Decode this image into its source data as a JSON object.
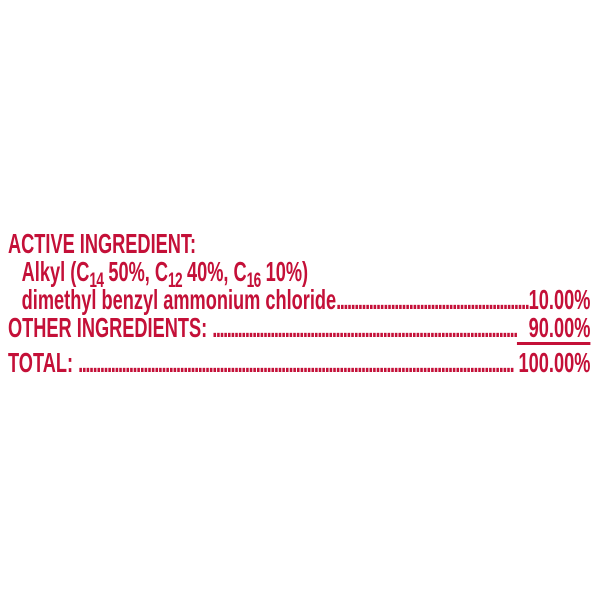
{
  "panel": {
    "text_color": "#c41038",
    "heading": "ACTIVE INGREDIENT:",
    "alkyl": {
      "p0": "Alkyl (C",
      "s0": "14",
      "p1": " 50%, C",
      "s1": "12",
      "p2": " 40%, C",
      "s2": "16",
      "p3": " 10%)"
    },
    "rows": {
      "chloride": {
        "label": "dimethyl benzyl ammonium chloride",
        "value": "10.00%"
      },
      "other": {
        "label": "OTHER INGREDIENTS: ",
        "value": "90.00%"
      },
      "total": {
        "label": "TOTAL: ",
        "value": "100.00%"
      }
    },
    "leader_dots": "........................................................................................................................"
  }
}
